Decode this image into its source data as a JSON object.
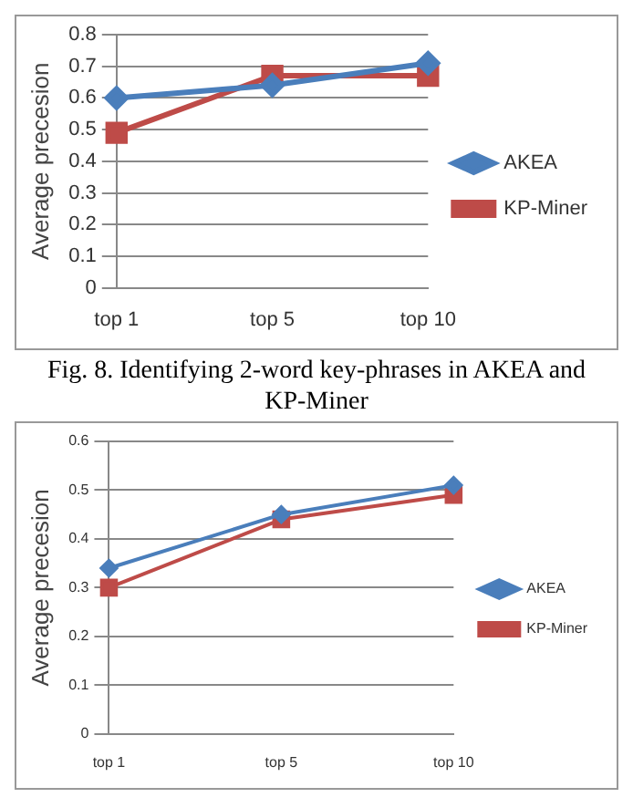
{
  "chart_data": [
    {
      "type": "line",
      "ylabel": "Average precesion",
      "categories": [
        "top 1",
        "top 5",
        "top 10"
      ],
      "series": [
        {
          "name": "AKEA",
          "color": "#4a7ebb",
          "values": [
            0.6,
            0.64,
            0.71
          ],
          "marker": "diamond"
        },
        {
          "name": "KP-Miner",
          "color": "#be4b48",
          "values": [
            0.49,
            0.67,
            0.67
          ],
          "marker": "square"
        }
      ],
      "ylim": [
        0,
        0.8
      ],
      "yticks": [
        0,
        0.1,
        0.2,
        0.3,
        0.4,
        0.5,
        0.6,
        0.7,
        0.8
      ],
      "grid": "y",
      "legend": "right",
      "annotations": [
        "Fig. 8. Identifying 2-word key-phrases in AKEA and KP-Miner"
      ]
    },
    {
      "type": "line",
      "ylabel": "Average precesion",
      "categories": [
        "top 1",
        "top 5",
        "top 10"
      ],
      "series": [
        {
          "name": "AKEA",
          "color": "#4a7ebb",
          "values": [
            0.34,
            0.45,
            0.51
          ],
          "marker": "diamond"
        },
        {
          "name": "KP-Miner",
          "color": "#be4b48",
          "values": [
            0.3,
            0.44,
            0.49
          ],
          "marker": "square"
        }
      ],
      "ylim": [
        0,
        0.6
      ],
      "yticks": [
        0,
        0.1,
        0.2,
        0.3,
        0.4,
        0.5,
        0.6
      ],
      "grid": "y",
      "legend": "right"
    }
  ]
}
